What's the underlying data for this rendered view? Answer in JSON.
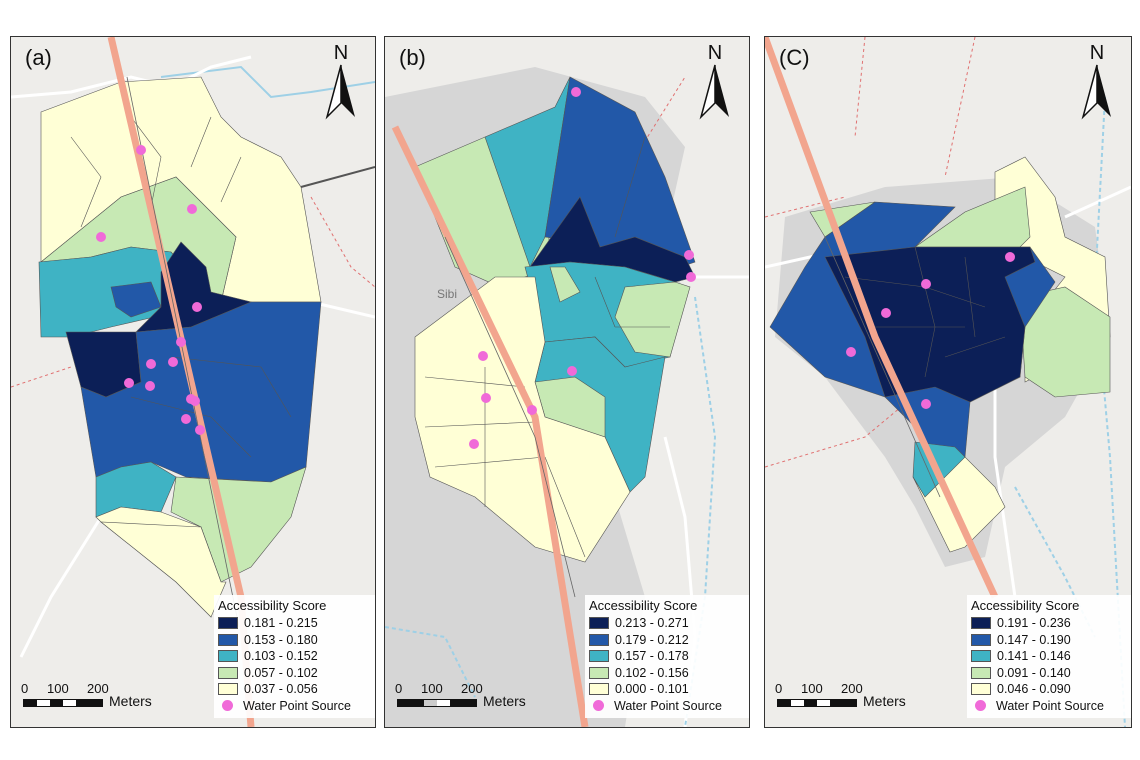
{
  "panels": [
    {
      "id": "a",
      "label": "(a)",
      "legend": {
        "title": "Accessibility Score",
        "classes": [
          {
            "label": "0.181 - 0.215",
            "color": "#0c1f57"
          },
          {
            "label": "0.153 - 0.180",
            "color": "#2258a8"
          },
          {
            "label": "0.103 - 0.152",
            "color": "#3fb3c4"
          },
          {
            "label": "0.057 - 0.102",
            "color": "#c7e9b4"
          },
          {
            "label": "0.037 - 0.056",
            "color": "#ffffd6"
          }
        ],
        "point_label": "Water Point Source"
      },
      "scale": {
        "ticks": [
          "0",
          "100",
          "200"
        ],
        "unit": "Meters"
      },
      "north": "N"
    },
    {
      "id": "b",
      "label": "(b)",
      "legend": {
        "title": "Accessibility Score",
        "classes": [
          {
            "label": "0.213 - 0.271",
            "color": "#0c1f57"
          },
          {
            "label": "0.179 - 0.212",
            "color": "#2258a8"
          },
          {
            "label": "0.157 - 0.178",
            "color": "#3fb3c4"
          },
          {
            "label": "0.102 - 0.156",
            "color": "#c7e9b4"
          },
          {
            "label": "0.000 - 0.101",
            "color": "#ffffd6"
          }
        ],
        "point_label": "Water Point Source"
      },
      "scale": {
        "ticks": [
          "0",
          "100",
          "200"
        ],
        "unit": "Meters"
      },
      "north": "N",
      "place_label": "Sibi"
    },
    {
      "id": "c",
      "label": "(C)",
      "legend": {
        "title": "Accessibility Score",
        "classes": [
          {
            "label": "0.191 - 0.236",
            "color": "#0c1f57"
          },
          {
            "label": "0.147 - 0.190",
            "color": "#2258a8"
          },
          {
            "label": "0.141 - 0.146",
            "color": "#3fb3c4"
          },
          {
            "label": "0.091 - 0.140",
            "color": "#c7e9b4"
          },
          {
            "label": "0.046 - 0.090",
            "color": "#ffffd6"
          }
        ],
        "point_label": "Water Point Source"
      },
      "scale": {
        "ticks": [
          "0",
          "100",
          "200"
        ],
        "unit": "Meters"
      },
      "north": "N"
    }
  ],
  "colors": {
    "road": "#f2a58e",
    "point": "#f06ad8",
    "background": "#eeedea",
    "builtup": "#d6d6d6",
    "water": "#9ed0e6"
  }
}
